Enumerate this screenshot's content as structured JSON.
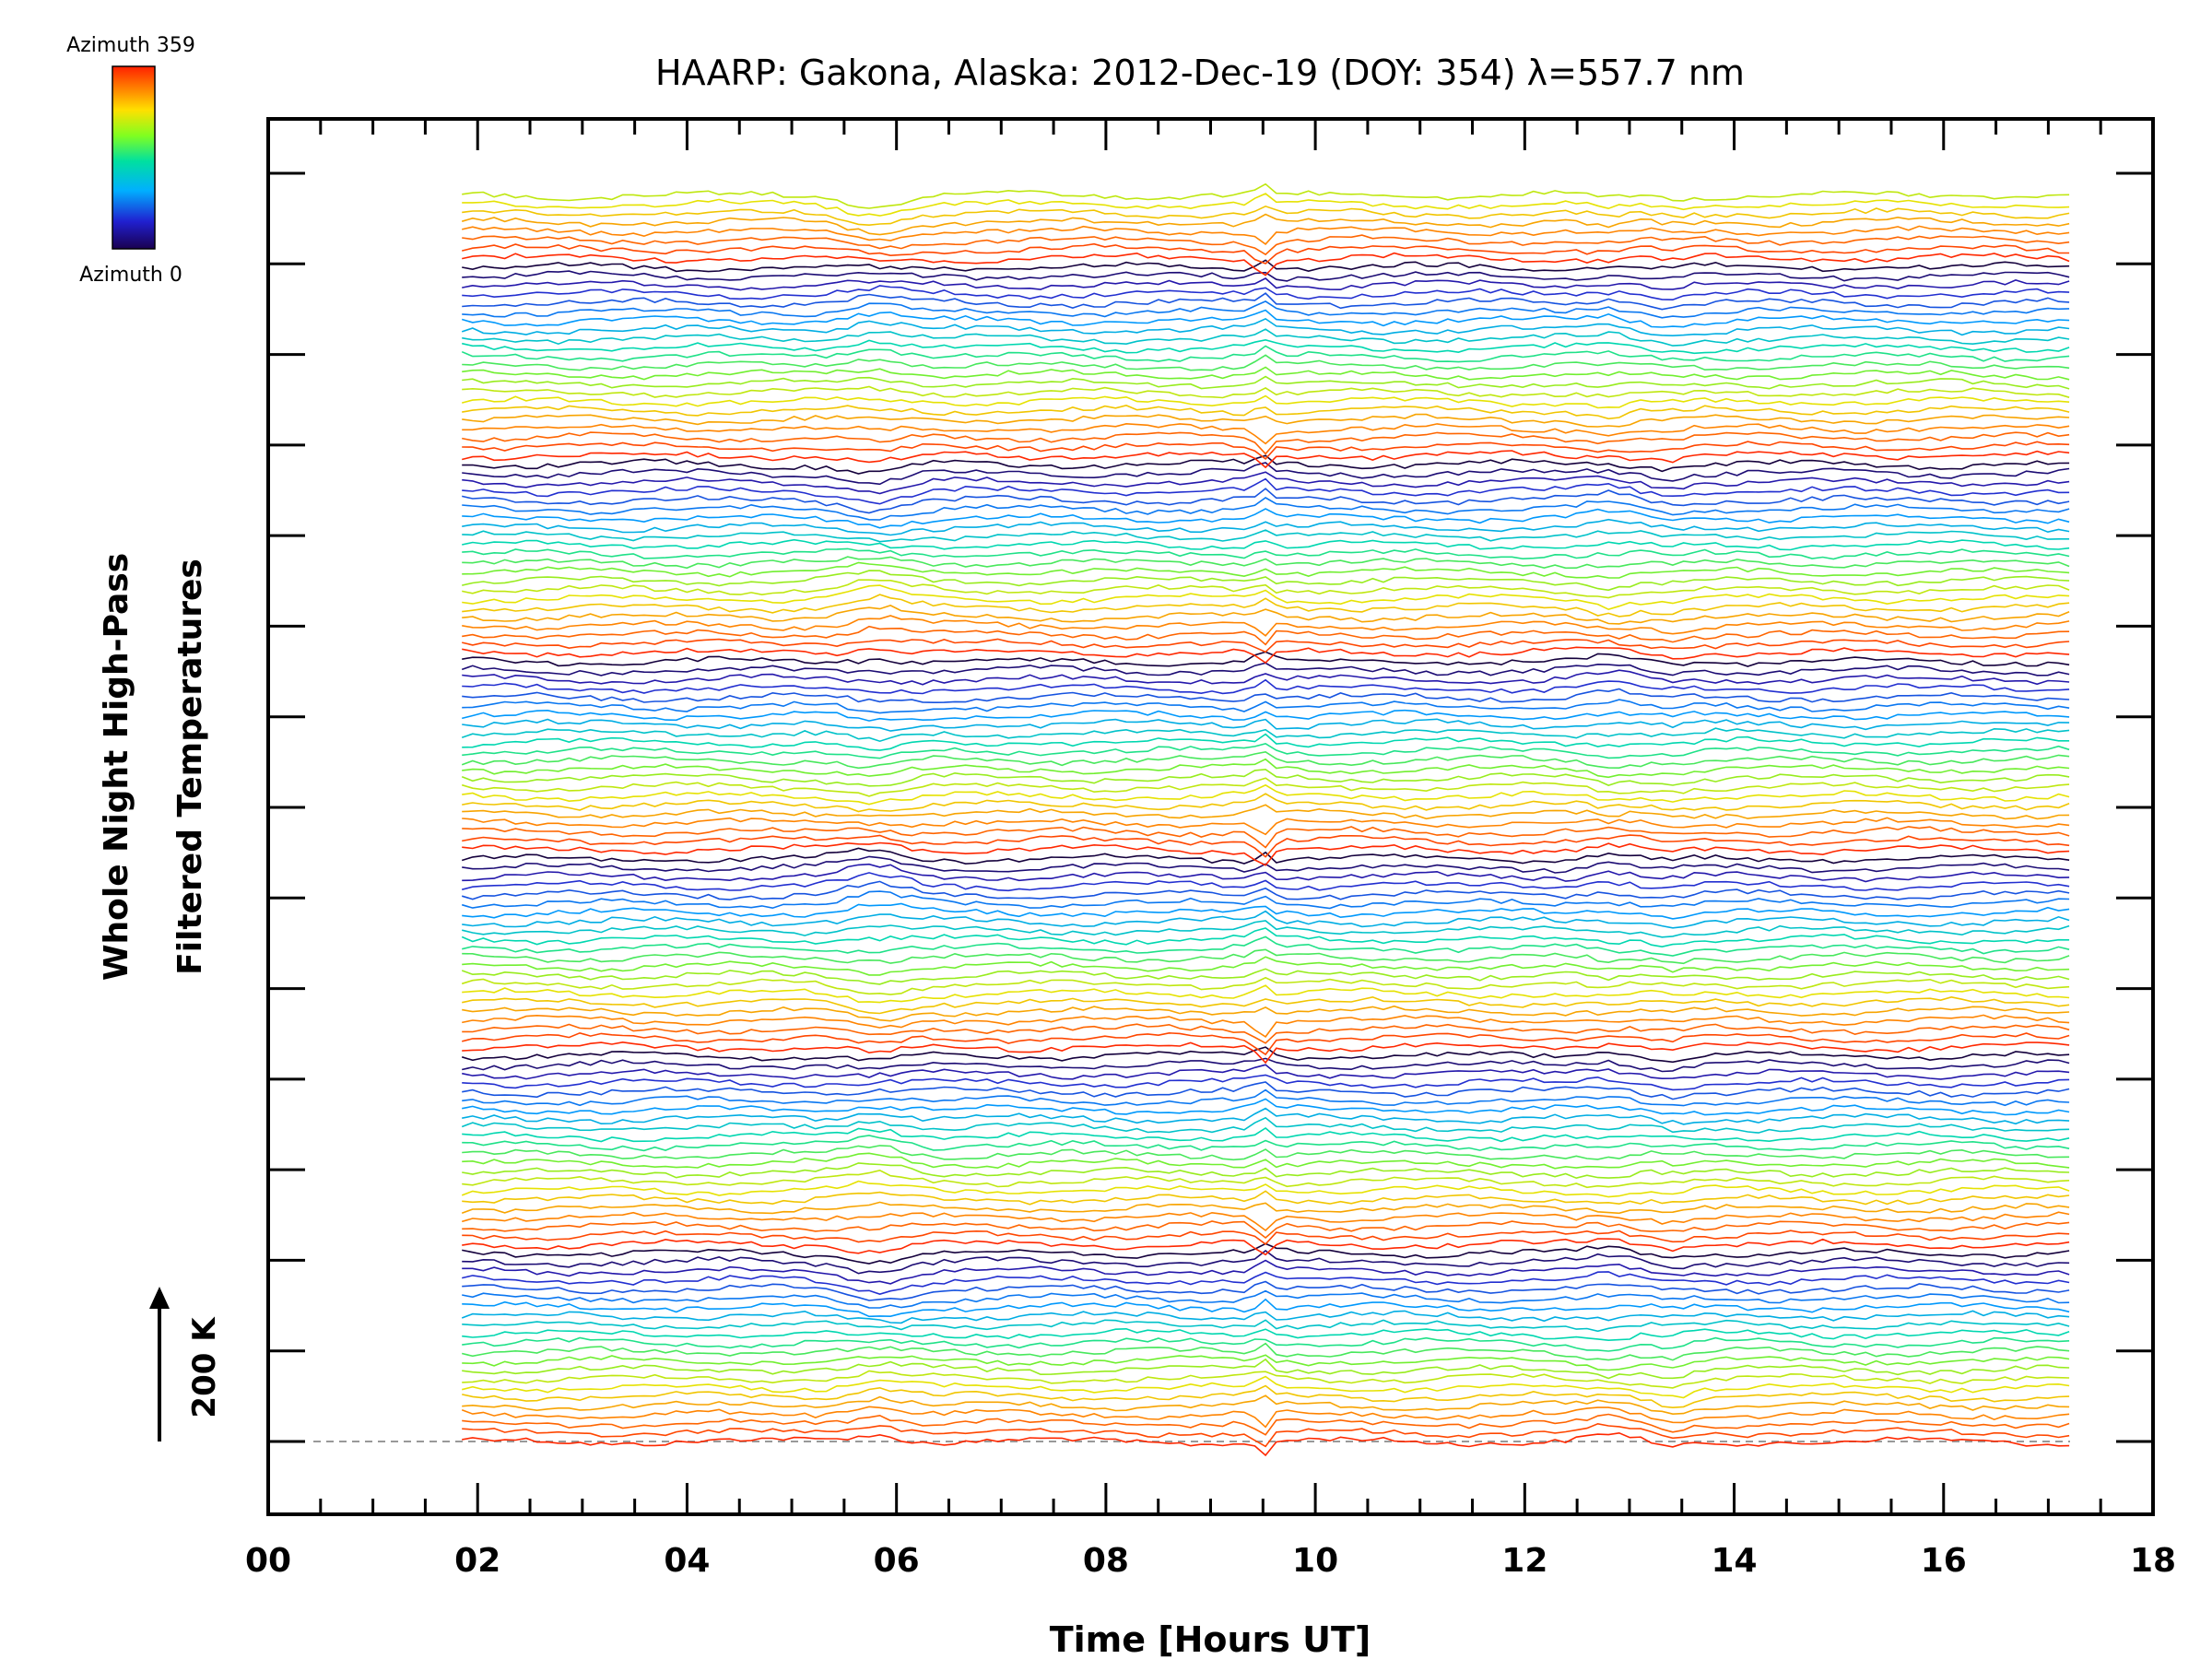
{
  "chart_data": {
    "type": "line",
    "title": "HAARP: Gakona,  Alaska: 2012-Dec-19 (DOY: 354) λ=557.7 nm",
    "xlabel": "Time [Hours UT]",
    "ylabel_line1": "Whole Night High-Pass",
    "ylabel_line2": "Filtered Temperatures",
    "xlim": [
      0,
      18
    ],
    "x_ticks": [
      "00",
      "02",
      "04",
      "06",
      "08",
      "10",
      "12",
      "14",
      "16",
      "18"
    ],
    "time_range_hours": [
      1.85,
      17.2
    ],
    "series_count": 140,
    "scale_bar_label": "200 K",
    "legend": {
      "colormap": "rainbow",
      "top_label": "Azimuth 359",
      "bottom_label": "Azimuth 0",
      "azimuth_range": [
        0,
        359
      ]
    },
    "notable_features_hours": [
      5.8,
      9.5,
      12.8,
      13.4
    ],
    "grid": false
  },
  "colors": {
    "background": "#ffffff",
    "axes": "#000000",
    "baseline": "#999999"
  }
}
